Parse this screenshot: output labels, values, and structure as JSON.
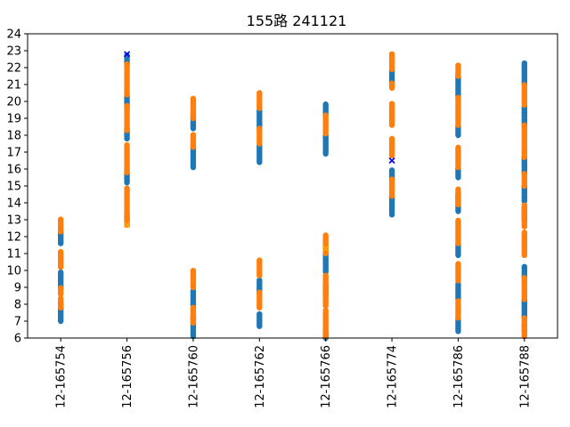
{
  "chart_data": {
    "type": "scatter",
    "title": "155路  241121",
    "categories": [
      "12-165754",
      "12-165756",
      "12-165760",
      "12-165762",
      "12-165766",
      "12-165774",
      "12-165786",
      "12-165788"
    ],
    "ylim": [
      6,
      24
    ],
    "yticks": [
      6,
      7,
      8,
      9,
      10,
      11,
      12,
      13,
      14,
      15,
      16,
      17,
      18,
      19,
      20,
      21,
      22,
      23,
      24
    ],
    "grid": false,
    "colors": {
      "blue": "#1f77b4",
      "orange": "#ff7f0e",
      "marker_x_blue": "#0000ff",
      "marker_x_orange": "#ffa500"
    },
    "series": [
      {
        "color": "blue",
        "ranges": [
          [
            [
              7.0,
              8.1
            ],
            [
              8.9,
              9.9
            ],
            [
              11.6,
              12.4
            ]
          ],
          [
            [
              12.9,
              13.3
            ],
            [
              15.2,
              15.8
            ],
            [
              17.8,
              18.4
            ],
            [
              19.6,
              20.4
            ],
            [
              22.1,
              22.8
            ]
          ],
          [
            [
              6.1,
              7.3
            ],
            [
              7.9,
              8.8
            ],
            [
              16.1,
              17.3
            ],
            [
              18.4,
              19.2
            ]
          ],
          [
            [
              6.7,
              7.5
            ],
            [
              8.7,
              9.5
            ],
            [
              16.4,
              17.4
            ],
            [
              18.4,
              19.5
            ]
          ],
          [
            [
              6.0,
              6.3
            ],
            [
              8.5,
              9.2
            ],
            [
              9.9,
              11.0
            ],
            [
              16.9,
              18.0
            ],
            [
              19.2,
              19.9
            ]
          ],
          [
            [
              13.3,
              14.4
            ],
            [
              15.3,
              16.0
            ],
            [
              21.0,
              21.9
            ]
          ],
          [
            [
              6.4,
              7.2
            ],
            [
              8.3,
              9.2
            ],
            [
              10.9,
              11.6
            ],
            [
              13.5,
              14.5
            ],
            [
              15.5,
              16.1
            ],
            [
              18.0,
              18.6
            ],
            [
              20.3,
              21.6
            ]
          ],
          [
            [
              6.4,
              6.8
            ],
            [
              7.2,
              8.3
            ],
            [
              9.5,
              10.3
            ],
            [
              13.0,
              13.8
            ],
            [
              14.1,
              15.0
            ],
            [
              15.8,
              16.7
            ],
            [
              18.5,
              19.7
            ],
            [
              21.0,
              22.3
            ]
          ]
        ]
      },
      {
        "color": "orange",
        "ranges": [
          [
            [
              7.8,
              8.4
            ],
            [
              8.6,
              9.0
            ],
            [
              10.2,
              11.1
            ],
            [
              12.3,
              13.1
            ]
          ],
          [
            [
              12.7,
              14.9
            ],
            [
              15.8,
              17.5
            ],
            [
              18.3,
              19.8
            ],
            [
              20.4,
              22.2
            ]
          ],
          [
            [
              6.9,
              7.8
            ],
            [
              9.0,
              10.0
            ],
            [
              17.3,
              18.1
            ],
            [
              19.0,
              20.2
            ]
          ],
          [
            [
              7.8,
              8.7
            ],
            [
              9.7,
              10.6
            ],
            [
              17.5,
              18.4
            ],
            [
              19.6,
              20.5
            ]
          ],
          [
            [
              6.1,
              7.7
            ],
            [
              7.9,
              9.7
            ],
            [
              11.0,
              12.1
            ],
            [
              18.1,
              19.2
            ]
          ],
          [
            [
              14.4,
              15.4
            ],
            [
              16.8,
              17.8
            ],
            [
              18.6,
              19.9
            ],
            [
              20.8,
              21.1
            ],
            [
              21.9,
              22.8
            ]
          ],
          [
            [
              7.2,
              8.2
            ],
            [
              9.4,
              10.4
            ],
            [
              11.6,
              13.0
            ],
            [
              13.9,
              14.8
            ],
            [
              16.1,
              17.3
            ],
            [
              18.6,
              20.3
            ],
            [
              21.5,
              22.2
            ]
          ],
          [
            [
              6.1,
              7.2
            ],
            [
              8.3,
              9.6
            ],
            [
              10.9,
              12.3
            ],
            [
              12.6,
              13.9
            ],
            [
              15.0,
              15.8
            ],
            [
              16.7,
              18.6
            ],
            [
              19.8,
              21.0
            ]
          ]
        ]
      }
    ],
    "x_markers": [
      {
        "category": 1,
        "y": 22.8,
        "color": "marker_x_blue"
      },
      {
        "category": 1,
        "y": 12.7,
        "color": "marker_x_orange"
      },
      {
        "category": 4,
        "y": 11.3,
        "color": "marker_x_orange"
      },
      {
        "category": 5,
        "y": 16.5,
        "color": "marker_x_blue"
      }
    ]
  }
}
